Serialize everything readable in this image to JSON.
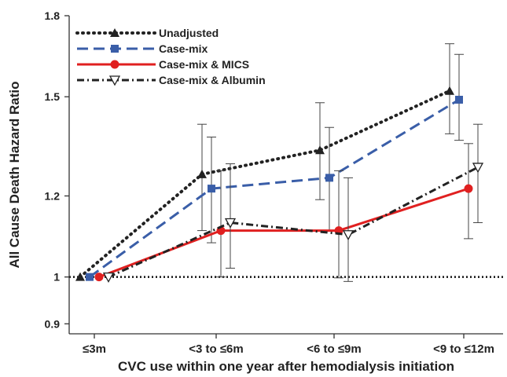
{
  "chart_data": {
    "type": "line",
    "xlabel": "CVC use within one year after hemodialysis initiation",
    "ylabel": "All Cause Death Hazard Ratio",
    "categories": [
      "≤3m",
      "<3 to ≤6m",
      "<6 to ≤9m",
      "<9 to ≤12m"
    ],
    "y_scale": "log",
    "ylim": [
      0.88,
      1.8
    ],
    "y_ticks": [
      {
        "value": 0.9,
        "label": "0.9"
      },
      {
        "value": 1.0,
        "label": "1"
      },
      {
        "value": 1.2,
        "label": "1.2"
      },
      {
        "value": 1.5,
        "label": "1.5"
      },
      {
        "value": 1.8,
        "label": "1.8"
      }
    ],
    "reference_line": 1.0,
    "legend_position": "top-left",
    "series": [
      {
        "name": "Unadjusted",
        "color": "#222222",
        "line": "dotted",
        "marker": "triangle-filled",
        "values": [
          1.0,
          1.26,
          1.33,
          1.52
        ],
        "ci_low": [
          null,
          1.11,
          1.19,
          1.38
        ],
        "ci_high": [
          null,
          1.41,
          1.48,
          1.69
        ]
      },
      {
        "name": "Case-mix",
        "color": "#3a5ea8",
        "line": "dashed",
        "marker": "square-filled",
        "values": [
          1.0,
          1.22,
          1.25,
          1.49
        ],
        "ci_low": [
          null,
          1.08,
          1.11,
          1.36
        ],
        "ci_high": [
          null,
          1.37,
          1.4,
          1.65
        ]
      },
      {
        "name": "Case-mix & MICS",
        "color": "#e02020",
        "line": "solid",
        "marker": "circle-filled",
        "values": [
          1.0,
          1.11,
          1.11,
          1.22
        ],
        "ci_low": [
          null,
          1.0,
          0.998,
          1.09
        ],
        "ci_high": [
          null,
          1.27,
          1.27,
          1.35
        ]
      },
      {
        "name": "Case-mix & Albumin",
        "color": "#222222",
        "line": "dash-dot",
        "marker": "triangle-open-down",
        "values": [
          1.0,
          1.13,
          1.1,
          1.28
        ],
        "ci_low": [
          null,
          1.02,
          0.99,
          1.13
        ],
        "ci_high": [
          null,
          1.29,
          1.25,
          1.41
        ]
      }
    ]
  }
}
